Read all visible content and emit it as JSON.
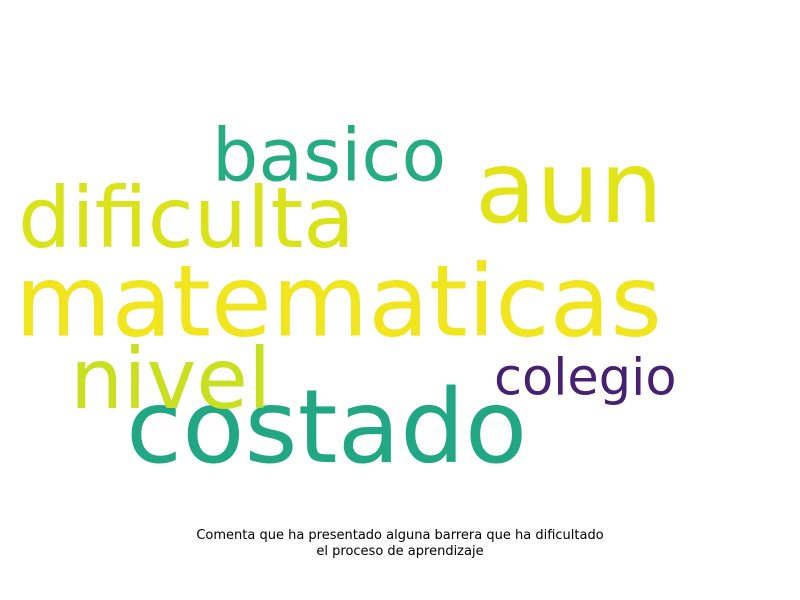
{
  "chart_data": {
    "type": "wordcloud",
    "words": [
      {
        "text": "matematicas",
        "weight": 1.0,
        "color": "#f1e51d"
      },
      {
        "text": "costado",
        "weight": 0.95,
        "color": "#22a784"
      },
      {
        "text": "aun",
        "weight": 0.9,
        "color": "#e2e418"
      },
      {
        "text": "dificulta",
        "weight": 0.78,
        "color": "#dae319"
      },
      {
        "text": "nivel",
        "weight": 0.76,
        "color": "#c8e020"
      },
      {
        "text": "basico",
        "weight": 0.68,
        "color": "#25ac82"
      },
      {
        "text": "colegio",
        "weight": 0.5,
        "color": "#482071"
      }
    ]
  },
  "caption": {
    "line1": "Comenta que ha presentado alguna barrera que ha dificultado",
    "line2": "el proceso de aprendizaje"
  }
}
